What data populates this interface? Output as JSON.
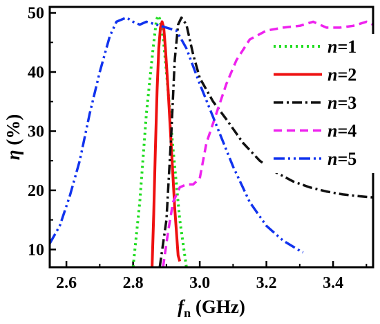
{
  "chart_data": {
    "type": "line",
    "title": "",
    "xlabel": {
      "italic": "f",
      "sub": "n",
      "rest": " (GHz)"
    },
    "ylabel": {
      "italic": "η",
      "rest": " (%)"
    },
    "xlim": [
      2.55,
      3.52
    ],
    "ylim": [
      7,
      51
    ],
    "xticks": [
      2.6,
      2.8,
      3.0,
      3.2,
      3.4
    ],
    "xtick_labels": [
      "2.6",
      "2.8",
      "3.0",
      "3.2",
      "3.4"
    ],
    "yticks": [
      10,
      20,
      30,
      40,
      50
    ],
    "ytick_labels": [
      "10",
      "20",
      "30",
      "40",
      "50"
    ],
    "grid": false,
    "legend_position": "top-right",
    "series": [
      {
        "name": "n=1",
        "italic": "n",
        "suffix": "=1",
        "color": "#22dd22",
        "dash": "3,5",
        "width": 4,
        "points": [
          [
            2.8,
            7
          ],
          [
            2.82,
            18
          ],
          [
            2.84,
            33
          ],
          [
            2.86,
            44
          ],
          [
            2.87,
            48.8
          ],
          [
            2.875,
            49.5
          ],
          [
            2.88,
            49
          ],
          [
            2.89,
            46
          ],
          [
            2.9,
            40
          ],
          [
            2.92,
            27
          ],
          [
            2.94,
            15
          ],
          [
            2.96,
            7
          ]
        ]
      },
      {
        "name": "n=2",
        "italic": "n",
        "suffix": "=2",
        "color": "#ee1111",
        "dash": "none",
        "width": 4,
        "points": [
          [
            2.857,
            7
          ],
          [
            2.862,
            16
          ],
          [
            2.867,
            27
          ],
          [
            2.872,
            37
          ],
          [
            2.877,
            44
          ],
          [
            2.882,
            47.5
          ],
          [
            2.887,
            48.5
          ],
          [
            2.892,
            47.5
          ],
          [
            2.897,
            44
          ],
          [
            2.905,
            37
          ],
          [
            2.915,
            27
          ],
          [
            2.925,
            17
          ],
          [
            2.935,
            9
          ],
          [
            2.94,
            8
          ]
        ]
      },
      {
        "name": "n=3",
        "italic": "n",
        "suffix": "=3",
        "color": "#111111",
        "dash": "14,5,3,5",
        "width": 3.5,
        "points": [
          [
            2.88,
            7
          ],
          [
            2.9,
            15
          ],
          [
            2.915,
            30
          ],
          [
            2.925,
            42
          ],
          [
            2.935,
            48
          ],
          [
            2.945,
            49.2
          ],
          [
            2.96,
            48
          ],
          [
            2.98,
            43
          ],
          [
            3.0,
            39
          ],
          [
            3.04,
            35
          ],
          [
            3.08,
            32
          ],
          [
            3.13,
            28
          ],
          [
            3.18,
            25
          ],
          [
            3.23,
            23
          ],
          [
            3.28,
            21.5
          ],
          [
            3.33,
            20.5
          ],
          [
            3.38,
            19.8
          ],
          [
            3.43,
            19.3
          ],
          [
            3.48,
            19.0
          ],
          [
            3.52,
            18.8
          ]
        ]
      },
      {
        "name": "n=4",
        "italic": "n",
        "suffix": "=4",
        "color": "#ee22ee",
        "dash": "12,7",
        "width": 3.5,
        "points": [
          [
            2.89,
            7
          ],
          [
            2.905,
            13
          ],
          [
            2.92,
            18
          ],
          [
            2.94,
            20.5
          ],
          [
            2.96,
            21
          ],
          [
            2.98,
            21
          ],
          [
            3.0,
            22
          ],
          [
            3.02,
            28
          ],
          [
            3.05,
            33
          ],
          [
            3.08,
            38
          ],
          [
            3.11,
            42
          ],
          [
            3.15,
            45.5
          ],
          [
            3.2,
            47
          ],
          [
            3.25,
            47.5
          ],
          [
            3.3,
            47.8
          ],
          [
            3.34,
            48.5
          ],
          [
            3.38,
            47.5
          ],
          [
            3.42,
            47.5
          ],
          [
            3.46,
            47.8
          ],
          [
            3.5,
            48.5
          ],
          [
            3.52,
            48
          ]
        ]
      },
      {
        "name": "n=5",
        "italic": "n",
        "suffix": "=5",
        "color": "#1133ee",
        "dash": "16,5,3,5,3,5",
        "width": 3.5,
        "points": [
          [
            2.55,
            11
          ],
          [
            2.58,
            14
          ],
          [
            2.61,
            19
          ],
          [
            2.64,
            25
          ],
          [
            2.67,
            33
          ],
          [
            2.7,
            40
          ],
          [
            2.73,
            46
          ],
          [
            2.75,
            48.5
          ],
          [
            2.78,
            49.2
          ],
          [
            2.8,
            48.5
          ],
          [
            2.82,
            48
          ],
          [
            2.84,
            48.5
          ],
          [
            2.87,
            48
          ],
          [
            2.9,
            47.5
          ],
          [
            2.93,
            47
          ],
          [
            2.96,
            44
          ],
          [
            3.0,
            38
          ],
          [
            3.05,
            31
          ],
          [
            3.1,
            24
          ],
          [
            3.15,
            18
          ],
          [
            3.2,
            14
          ],
          [
            3.25,
            11.5
          ],
          [
            3.3,
            9.8
          ],
          [
            3.31,
            9.5
          ]
        ]
      }
    ]
  }
}
